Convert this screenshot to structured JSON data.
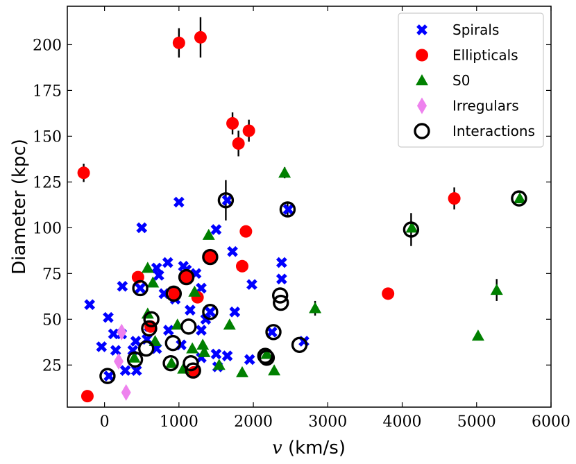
{
  "chart_data": {
    "type": "scatter",
    "title": "",
    "xlabel_var": "v",
    "xlabel_unit": " (km/s)",
    "ylabel": "Diameter (kpc)",
    "xlim": [
      -500,
      6000
    ],
    "ylim": [
      2,
      221
    ],
    "xticks": [
      0,
      1000,
      2000,
      3000,
      4000,
      5000,
      6000
    ],
    "yticks": [
      25,
      50,
      75,
      100,
      125,
      150,
      175,
      200
    ],
    "legend_position": "top-right",
    "series": [
      {
        "name": "Spirals",
        "marker": "x",
        "color": "#0000ff",
        "points": [
          {
            "x": -200,
            "y": 58
          },
          {
            "x": 50,
            "y": 51
          },
          {
            "x": 240,
            "y": 68
          },
          {
            "x": 500,
            "y": 100
          },
          {
            "x": 1000,
            "y": 114
          },
          {
            "x": 1650,
            "y": 115
          },
          {
            "x": 1500,
            "y": 99
          },
          {
            "x": 1720,
            "y": 87
          },
          {
            "x": 2470,
            "y": 110
          },
          {
            "x": 2380,
            "y": 81
          },
          {
            "x": 2380,
            "y": 72
          },
          {
            "x": 1980,
            "y": 69
          },
          {
            "x": 850,
            "y": 81
          },
          {
            "x": 700,
            "y": 78
          },
          {
            "x": 1060,
            "y": 79
          },
          {
            "x": 1100,
            "y": 77
          },
          {
            "x": 730,
            "y": 74
          },
          {
            "x": 1230,
            "y": 75
          },
          {
            "x": 1300,
            "y": 67
          },
          {
            "x": 800,
            "y": 64
          },
          {
            "x": 950,
            "y": 61
          },
          {
            "x": 1150,
            "y": 55
          },
          {
            "x": 1420,
            "y": 54
          },
          {
            "x": 1750,
            "y": 54
          },
          {
            "x": 1360,
            "y": 50
          },
          {
            "x": 230,
            "y": 42
          },
          {
            "x": 120,
            "y": 42
          },
          {
            "x": 420,
            "y": 38
          },
          {
            "x": 570,
            "y": 39
          },
          {
            "x": 860,
            "y": 44
          },
          {
            "x": 1300,
            "y": 44
          },
          {
            "x": -40,
            "y": 35
          },
          {
            "x": 150,
            "y": 33
          },
          {
            "x": 380,
            "y": 33
          },
          {
            "x": 700,
            "y": 34
          },
          {
            "x": 1030,
            "y": 36
          },
          {
            "x": 1300,
            "y": 29
          },
          {
            "x": 1500,
            "y": 31
          },
          {
            "x": 1650,
            "y": 30
          },
          {
            "x": 1950,
            "y": 28
          },
          {
            "x": 280,
            "y": 22
          },
          {
            "x": 430,
            "y": 22
          },
          {
            "x": 2250,
            "y": 43
          },
          {
            "x": 2680,
            "y": 38
          },
          {
            "x": 1520,
            "y": 24
          },
          {
            "x": 60,
            "y": 19
          },
          {
            "x": 600,
            "y": 46
          },
          {
            "x": 480,
            "y": 67
          }
        ]
      },
      {
        "name": "Ellipticals",
        "marker": "o",
        "color": "#ff0000",
        "errorbars": true,
        "points": [
          {
            "x": -280,
            "y": 130,
            "err": 5
          },
          {
            "x": -230,
            "y": 8,
            "err": 0
          },
          {
            "x": 1000,
            "y": 201,
            "err": 8
          },
          {
            "x": 1290,
            "y": 204,
            "err": 11
          },
          {
            "x": 1720,
            "y": 157,
            "err": 6
          },
          {
            "x": 1940,
            "y": 153,
            "err": 6
          },
          {
            "x": 1800,
            "y": 146,
            "err": 7
          },
          {
            "x": 1900,
            "y": 98,
            "err": 3
          },
          {
            "x": 1850,
            "y": 79,
            "err": 0
          },
          {
            "x": 1420,
            "y": 84,
            "err": 0
          },
          {
            "x": 1100,
            "y": 73,
            "err": 0
          },
          {
            "x": 940,
            "y": 64,
            "err": 0
          },
          {
            "x": 450,
            "y": 73,
            "err": 0
          },
          {
            "x": 1250,
            "y": 62,
            "err": 0
          },
          {
            "x": 3810,
            "y": 64,
            "err": 0
          },
          {
            "x": 4700,
            "y": 116,
            "err": 6
          },
          {
            "x": 1200,
            "y": 21,
            "err": 0
          },
          {
            "x": 620,
            "y": 46,
            "err": 0
          }
        ]
      },
      {
        "name": "S0",
        "marker": "^",
        "color": "#008000",
        "errorbars": true,
        "points": [
          {
            "x": 2420,
            "y": 130,
            "err": 3
          },
          {
            "x": 1400,
            "y": 96,
            "err": 0
          },
          {
            "x": 580,
            "y": 78,
            "err": 0
          },
          {
            "x": 650,
            "y": 70,
            "err": 0
          },
          {
            "x": 1210,
            "y": 65,
            "err": 0
          },
          {
            "x": 580,
            "y": 53,
            "err": 0
          },
          {
            "x": 980,
            "y": 47,
            "err": 0
          },
          {
            "x": 1680,
            "y": 47,
            "err": 0
          },
          {
            "x": 2830,
            "y": 56,
            "err": 4
          },
          {
            "x": 1320,
            "y": 36,
            "err": 0
          },
          {
            "x": 1180,
            "y": 34,
            "err": 0
          },
          {
            "x": 1340,
            "y": 32,
            "err": 0
          },
          {
            "x": 1540,
            "y": 25,
            "err": 0
          },
          {
            "x": 1060,
            "y": 23,
            "err": 0
          },
          {
            "x": 900,
            "y": 26,
            "err": 0
          },
          {
            "x": 1850,
            "y": 21,
            "err": 0
          },
          {
            "x": 2280,
            "y": 22,
            "err": 0
          },
          {
            "x": 2180,
            "y": 31,
            "err": 0
          },
          {
            "x": 400,
            "y": 29,
            "err": 0
          },
          {
            "x": 5020,
            "y": 41,
            "err": 0
          },
          {
            "x": 5270,
            "y": 66,
            "err": 6
          },
          {
            "x": 4130,
            "y": 100,
            "err": 0
          },
          {
            "x": 5580,
            "y": 116,
            "err": 0
          },
          {
            "x": 680,
            "y": 38,
            "err": 0
          }
        ]
      },
      {
        "name": "Irregulars",
        "marker": "d",
        "color": "#ee82ee",
        "points": [
          {
            "x": 230,
            "y": 43
          },
          {
            "x": 190,
            "y": 27
          },
          {
            "x": 290,
            "y": 10
          }
        ]
      },
      {
        "name": "Interactions",
        "marker": "ring",
        "color": "#000000",
        "errorbars": true,
        "points": [
          {
            "x": 40,
            "y": 19,
            "err": 0
          },
          {
            "x": 410,
            "y": 28,
            "err": 0
          },
          {
            "x": 560,
            "y": 34,
            "err": 0
          },
          {
            "x": 480,
            "y": 67,
            "err": 0
          },
          {
            "x": 930,
            "y": 64,
            "err": 0
          },
          {
            "x": 1100,
            "y": 73,
            "err": 0
          },
          {
            "x": 1420,
            "y": 84,
            "err": 0
          },
          {
            "x": 1630,
            "y": 115,
            "err": 11
          },
          {
            "x": 2460,
            "y": 110,
            "err": 4
          },
          {
            "x": 2360,
            "y": 63,
            "err": 0
          },
          {
            "x": 2370,
            "y": 59,
            "err": 0
          },
          {
            "x": 1420,
            "y": 54,
            "err": 0
          },
          {
            "x": 630,
            "y": 50,
            "err": 0
          },
          {
            "x": 600,
            "y": 45,
            "err": 0
          },
          {
            "x": 920,
            "y": 37,
            "err": 0
          },
          {
            "x": 1130,
            "y": 46,
            "err": 0
          },
          {
            "x": 890,
            "y": 26,
            "err": 0
          },
          {
            "x": 1160,
            "y": 26,
            "err": 0
          },
          {
            "x": 1190,
            "y": 22,
            "err": 0
          },
          {
            "x": 2160,
            "y": 30,
            "err": 0
          },
          {
            "x": 2180,
            "y": 29,
            "err": 0
          },
          {
            "x": 2270,
            "y": 43,
            "err": 0
          },
          {
            "x": 2620,
            "y": 36,
            "err": 0
          },
          {
            "x": 4120,
            "y": 99,
            "err": 9
          },
          {
            "x": 5570,
            "y": 116,
            "err": 0
          }
        ]
      }
    ]
  }
}
